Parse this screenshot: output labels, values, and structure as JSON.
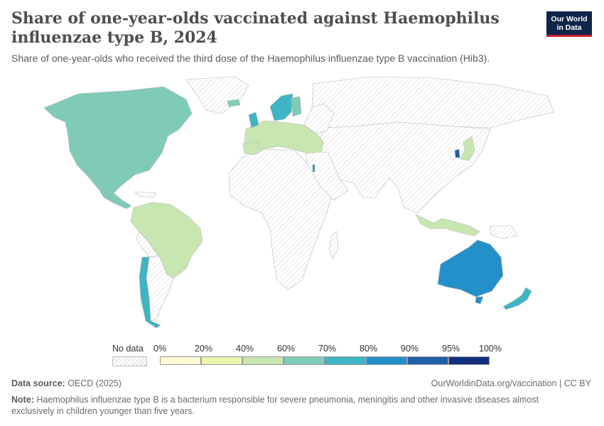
{
  "header": {
    "title": "Share of one-year-olds vaccinated against Haemophilus influenzae type B, 2024",
    "subtitle": "Share of one-year-olds who received the third dose of the Haemophilus influenzae type B vaccination (Hib3).",
    "logo_line1": "Our World",
    "logo_line2": "in Data"
  },
  "legend": {
    "no_data_label": "No data",
    "bins": [
      {
        "label": "0%",
        "color": "#fffbd2"
      },
      {
        "label": "20%",
        "color": "#ecf5b0"
      },
      {
        "label": "40%",
        "color": "#c8e6b0"
      },
      {
        "label": "60%",
        "color": "#80cbb7"
      },
      {
        "label": "70%",
        "color": "#3fb4c4"
      },
      {
        "label": "80%",
        "color": "#2490c9"
      },
      {
        "label": "90%",
        "color": "#1f5fa8"
      },
      {
        "label": "95%",
        "color": "#132f7e"
      }
    ],
    "end_label": "100%"
  },
  "map_data": {
    "regions": [
      {
        "name": "North America",
        "bin": "60%"
      },
      {
        "name": "South America",
        "bin": "40%"
      },
      {
        "name": "Chile",
        "bin": "70%"
      },
      {
        "name": "Europe",
        "bin": "40%"
      },
      {
        "name": "Nordics",
        "bin": "70%"
      },
      {
        "name": "Japan",
        "bin": "40%"
      },
      {
        "name": "Indonesia",
        "bin": "40%"
      },
      {
        "name": "Australia",
        "bin": "80%"
      },
      {
        "name": "New Zealand",
        "bin": "70%"
      }
    ]
  },
  "footer": {
    "source_label": "Data source:",
    "source_value": "OECD (2025)",
    "url": "OurWorldinData.org/vaccination | CC BY",
    "note_label": "Note:",
    "note_text": "Haemophilus influenzae type B is a bacterium responsible for severe pneumonia, meningitis and other invasive diseases almost exclusively in children younger than five years."
  }
}
